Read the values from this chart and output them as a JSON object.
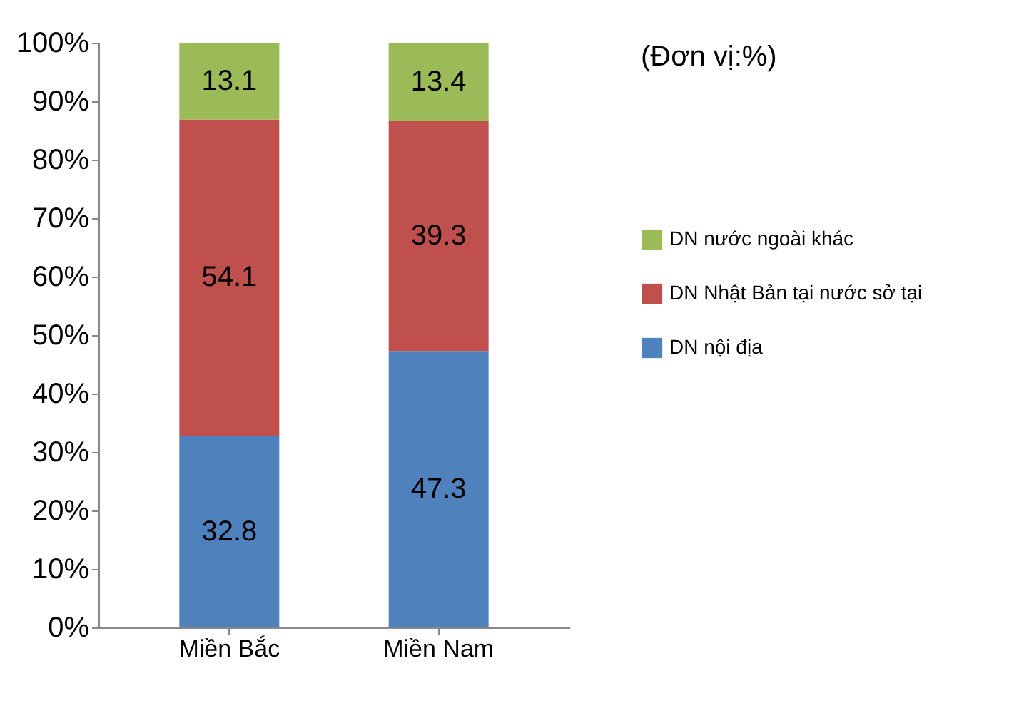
{
  "chart_data": {
    "type": "bar",
    "stacked": true,
    "categories": [
      "Miền Bắc",
      "Miền Nam"
    ],
    "series": [
      {
        "name": "DN nội địa",
        "color": "#4f81bd",
        "values": [
          32.8,
          47.3
        ]
      },
      {
        "name": "DN Nhật Bản tại nước sở tại",
        "color": "#c0504d",
        "values": [
          54.1,
          39.3
        ]
      },
      {
        "name": "DN nước ngoài khác",
        "color": "#9bbb59",
        "values": [
          13.1,
          13.4
        ]
      }
    ],
    "ylim": [
      0,
      100
    ],
    "yticks": [
      {
        "value": 0,
        "label": "0%"
      },
      {
        "value": 10,
        "label": "10%"
      },
      {
        "value": 20,
        "label": "20%"
      },
      {
        "value": 30,
        "label": "30%"
      },
      {
        "value": 40,
        "label": "40%"
      },
      {
        "value": 50,
        "label": "50%"
      },
      {
        "value": 60,
        "label": "60%"
      },
      {
        "value": 70,
        "label": "70%"
      },
      {
        "value": 80,
        "label": "80%"
      },
      {
        "value": 90,
        "label": "90%"
      },
      {
        "value": 100,
        "label": "100%"
      }
    ],
    "data_labels": true,
    "grid": false,
    "legend": "right",
    "annotations": [
      "(Đơn vị:%)"
    ]
  }
}
